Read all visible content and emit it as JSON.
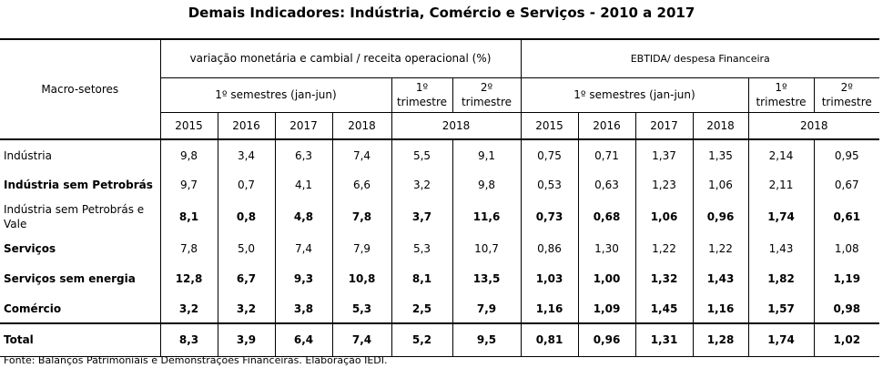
{
  "title": "Demais Indicadores: Indústria, Comércio e Serviços - 2010 a 2017",
  "header": {
    "macro_label": "Macro-setores",
    "group1": "variação monetária e cambial / receita operacional (%)",
    "group2": "EBTIDA/ despesa Financeira",
    "semestres": "1º semestres (jan-jun)",
    "q1": [
      "1º",
      "trimestre"
    ],
    "q2": [
      "2º",
      "trimestre"
    ],
    "years": [
      "2015",
      "2016",
      "2017",
      "2018"
    ],
    "year_2018": "2018"
  },
  "rows": [
    {
      "label": "Indústria",
      "label_bold": false,
      "values_bold": false,
      "values": [
        "9,8",
        "3,4",
        "6,3",
        "7,4",
        "5,5",
        "9,1",
        "0,75",
        "0,71",
        "1,37",
        "1,35",
        "2,14",
        "0,95"
      ]
    },
    {
      "label": "Indústria sem Petrobrás",
      "label_bold": true,
      "values_bold": false,
      "values": [
        "9,7",
        "0,7",
        "4,1",
        "6,6",
        "3,2",
        "9,8",
        "0,53",
        "0,63",
        "1,23",
        "1,06",
        "2,11",
        "0,67"
      ]
    },
    {
      "label": "Indústria sem Petrobrás e Vale",
      "label_bold": false,
      "values_bold": true,
      "values": [
        "8,1",
        "0,8",
        "4,8",
        "7,8",
        "3,7",
        "11,6",
        "0,73",
        "0,68",
        "1,06",
        "0,96",
        "1,74",
        "0,61"
      ]
    },
    {
      "label": "Serviços",
      "label_bold": true,
      "values_bold": false,
      "values": [
        "7,8",
        "5,0",
        "7,4",
        "7,9",
        "5,3",
        "10,7",
        "0,86",
        "1,30",
        "1,22",
        "1,22",
        "1,43",
        "1,08"
      ]
    },
    {
      "label": "Serviços sem energia",
      "label_bold": true,
      "values_bold": true,
      "values": [
        "12,8",
        "6,7",
        "9,3",
        "10,8",
        "8,1",
        "13,5",
        "1,03",
        "1,00",
        "1,32",
        "1,43",
        "1,82",
        "1,19"
      ]
    },
    {
      "label": "Comércio",
      "label_bold": true,
      "values_bold": true,
      "values": [
        "3,2",
        "3,2",
        "3,8",
        "5,3",
        "2,5",
        "7,9",
        "1,16",
        "1,09",
        "1,45",
        "1,16",
        "1,57",
        "0,98"
      ]
    },
    {
      "label": "Total",
      "label_bold": true,
      "values_bold": true,
      "values": [
        "8,3",
        "3,9",
        "6,4",
        "7,4",
        "5,2",
        "9,5",
        "0,81",
        "0,96",
        "1,31",
        "1,28",
        "1,74",
        "1,02"
      ]
    }
  ],
  "source": "Fonte: Balanços Patrimoniais e Demonstrações Financeiras. Elaboração IEDI."
}
